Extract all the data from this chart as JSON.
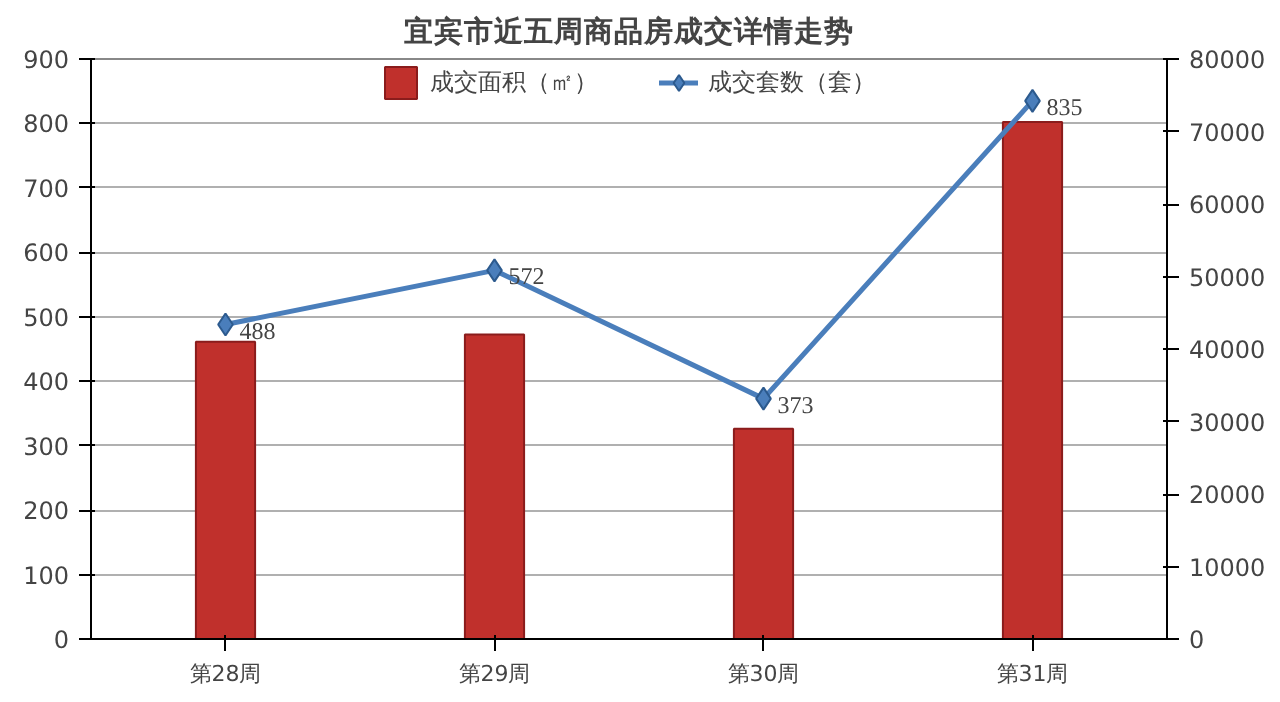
{
  "chart_data": {
    "type": "bar",
    "title": "宜宾市近五周商品房成交详情走势",
    "categories": [
      "第28周",
      "第29周",
      "第30周",
      "第31周"
    ],
    "series": [
      {
        "name": "成交面积（㎡）",
        "axis": "y2",
        "color": "#c0302c",
        "values": [
          41000,
          42000,
          29000,
          71300
        ]
      },
      {
        "name": "成交套数（套）",
        "type": "line",
        "axis": "y",
        "color": "#4a7ebb",
        "values": [
          488,
          572,
          373,
          835
        ],
        "value_labels": [
          "488",
          "572",
          "373",
          "835"
        ]
      }
    ],
    "ylim": [
      0,
      900
    ],
    "yticks": [
      0,
      100,
      200,
      300,
      400,
      500,
      600,
      700,
      800,
      900
    ],
    "y2lim": [
      0,
      80000
    ],
    "y2ticks": [
      0,
      10000,
      20000,
      30000,
      40000,
      50000,
      60000,
      70000,
      80000
    ],
    "grid": "y",
    "legend": "top",
    "marker": "diamond",
    "line_style": "solid"
  }
}
